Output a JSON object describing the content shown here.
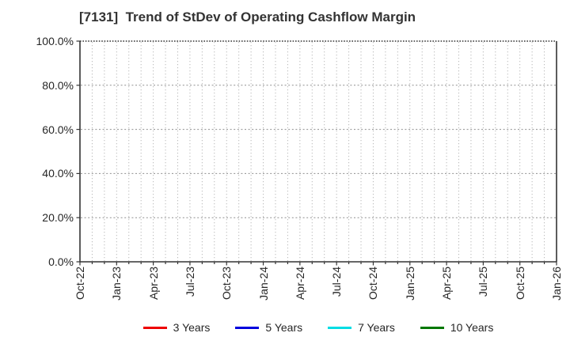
{
  "chart_data": {
    "type": "line",
    "title": "[7131]  Trend of StDev of Operating Cashflow Margin",
    "x_tick_labels": [
      "Oct-22",
      "Jan-23",
      "Apr-23",
      "Jul-23",
      "Oct-23",
      "Jan-24",
      "Apr-24",
      "Jul-24",
      "Oct-24",
      "Jan-25",
      "Apr-25",
      "Jul-25",
      "Oct-25",
      "Jan-26"
    ],
    "months_between_ticks": 3,
    "total_months": 39,
    "y_tick_values": [
      0,
      20,
      40,
      60,
      80,
      100
    ],
    "y_tick_labels": [
      "0.0%",
      "20.0%",
      "40.0%",
      "60.0%",
      "80.0%",
      "100.0%"
    ],
    "ylim": [
      0,
      100
    ],
    "grid": {
      "visible": true,
      "style": "dotted",
      "vertical": "monthly",
      "horizontal": "every 20%"
    },
    "legend_position": "bottom",
    "series": [
      {
        "name": "3 Years",
        "color": "#ee0000",
        "values": []
      },
      {
        "name": "5 Years",
        "color": "#0000dd",
        "values": []
      },
      {
        "name": "7 Years",
        "color": "#00dde4",
        "values": []
      },
      {
        "name": "10 Years",
        "color": "#007700",
        "values": []
      }
    ]
  },
  "colors": {
    "background": "#ffffff",
    "title_text": "#333333",
    "axis_frame": "#333333",
    "tick_text": "#262626",
    "grid_horizontal": "#8f8f8f",
    "grid_vertical": "#b8b8b8"
  }
}
